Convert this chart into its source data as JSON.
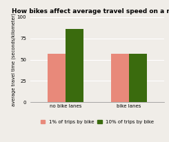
{
  "title": "How bikes affect average travel speed on a road",
  "categories": [
    "no bike lanes",
    "bike lanes"
  ],
  "series": {
    "1% of trips by bike": [
      57,
      57
    ],
    "10% of trips by bike": [
      86,
      57
    ]
  },
  "colors": {
    "1% of trips by bike": "#e8897a",
    "10% of trips by bike": "#3a6b0e"
  },
  "ylabel": "average travel time (seconds/kilometer)",
  "ylim": [
    0,
    100
  ],
  "yticks": [
    0,
    25,
    50,
    75,
    100
  ],
  "background_color": "#f0ede8",
  "title_fontsize": 6.5,
  "axis_fontsize": 4.8,
  "tick_fontsize": 5.0,
  "legend_fontsize": 5.0,
  "bar_width": 0.28
}
